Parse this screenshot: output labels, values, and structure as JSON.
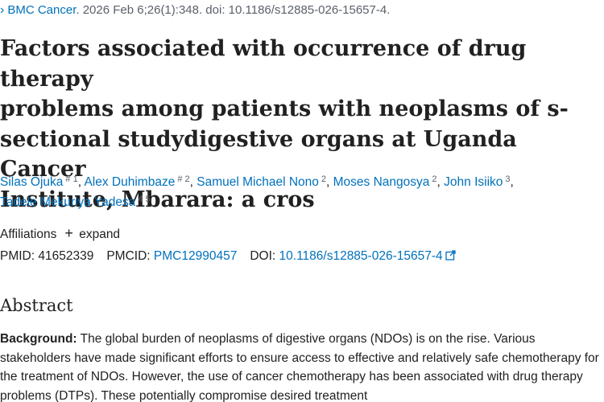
{
  "citation": {
    "chevron": "›",
    "journal": "BMC Cancer",
    "details": ". 2026 Feb 6;26(1):348. doi: 10.1186/s12885-026-15657-4."
  },
  "article": {
    "title_line1": "Factors associated with occurrence of drug therapy",
    "title_line2": "problems among patients with neoplasms of s-",
    "title_line3": "sectional studydigestive organs at Uganda Cancer",
    "title_line4": "Institute, Mbarara: a cros"
  },
  "authors": [
    {
      "name": "Silas Ojuka",
      "sup": "# 1",
      "sep": ", "
    },
    {
      "name": "Alex Duhimbaze",
      "sup": "# 2",
      "sep": ", "
    },
    {
      "name": "Samuel Michael Nono",
      "sup": "2",
      "sep": ", "
    },
    {
      "name": "Moses Nangosya",
      "sup": "2",
      "sep": ", "
    },
    {
      "name": "John Isiiko",
      "sup": "3",
      "sep": ","
    },
    {
      "name": "Tadele Mekuriya Yadesa",
      "sup": "4 5",
      "sep": ""
    }
  ],
  "affiliations": {
    "label": "Affiliations",
    "expand_icon": "+",
    "expand_label": "expand"
  },
  "ids": {
    "pmid_label": "PMID:",
    "pmid": "41652339",
    "pmcid_label": "PMCID:",
    "pmcid": "PMC12990457",
    "doi_label": "DOI:",
    "doi": "10.1186/s12885-026-15657-4",
    "doi_icon": "external-link-icon"
  },
  "abstract": {
    "heading": "Abstract",
    "background_label": "Background:",
    "background_text": " The global burden of neoplasms of digestive organs (NDOs) is on the rise. Various stakeholders have made significant efforts to ensure access to effective and relatively safe chemotherapy for the treatment of NDOs. However, the use of cancer chemotherapy has been associated with drug therapy problems (DTPs). These potentially compromise desired treatment"
  },
  "colors": {
    "link": "#0071bc",
    "text": "#212121",
    "muted": "#5b616b"
  }
}
